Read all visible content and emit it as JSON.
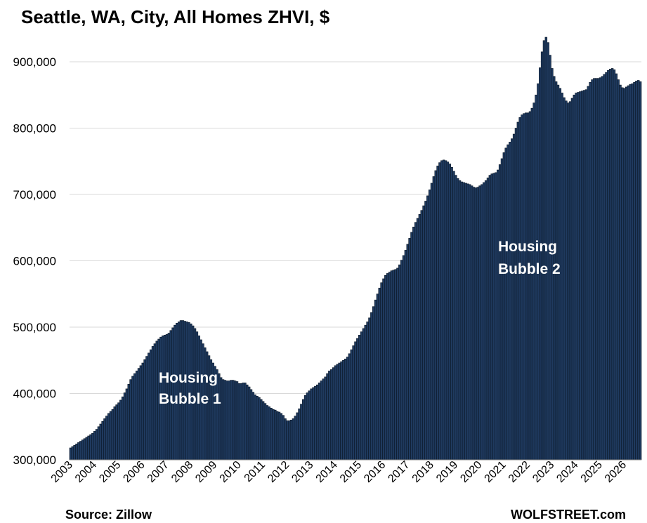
{
  "chart_data": {
    "type": "bar",
    "title": "Seattle, WA,  City, All Homes ZHVI, $",
    "xlabel": "",
    "ylabel": "",
    "ylim": [
      300000,
      940000
    ],
    "yticks": [
      300000,
      400000,
      500000,
      600000,
      700000,
      800000,
      900000
    ],
    "ytick_labels": [
      "300,000",
      "400,000",
      "500,000",
      "600,000",
      "700,000",
      "800,000",
      "900,000"
    ],
    "xtick_labels": [
      "2003",
      "2004",
      "2005",
      "2006",
      "2007",
      "2008",
      "2009",
      "2010",
      "2011",
      "2012",
      "2013",
      "2014",
      "2015",
      "2016",
      "2017",
      "2018",
      "2019",
      "2020",
      "2021",
      "2022",
      "2023",
      "2024",
      "2025",
      "2026"
    ],
    "grid": true,
    "frequency": "monthly",
    "start": "2003-01",
    "bar_color": "#1f3a5f",
    "series": [
      {
        "values": [
          318000,
          320000,
          322000,
          324000,
          326000,
          328000,
          330000,
          332000,
          334000,
          336000,
          338000,
          340000,
          343000,
          346000,
          350000,
          354000,
          358000,
          362000,
          366000,
          370000,
          373000,
          376000,
          380000,
          383000,
          386000,
          390000,
          395000,
          401000,
          407000,
          414000,
          421000,
          426000,
          430000,
          434000,
          438000,
          442000,
          446000,
          451000,
          456000,
          461000,
          466000,
          471000,
          475000,
          479000,
          482000,
          485000,
          487000,
          488000,
          489000,
          491000,
          495000,
          499000,
          503000,
          506000,
          508000,
          510000,
          510000,
          509000,
          508000,
          507000,
          505000,
          502000,
          498000,
          493000,
          487000,
          481000,
          475000,
          469000,
          463000,
          457000,
          451000,
          446000,
          441000,
          436000,
          430000,
          424000,
          421000,
          420000,
          419000,
          419000,
          420000,
          420000,
          419000,
          418000,
          415000,
          415000,
          416000,
          416000,
          413000,
          410000,
          406000,
          402000,
          398000,
          396000,
          394000,
          391000,
          388000,
          385000,
          382000,
          380000,
          378000,
          376000,
          375000,
          373000,
          372000,
          370000,
          367000,
          362000,
          359000,
          359000,
          360000,
          362000,
          366000,
          371000,
          377000,
          384000,
          391000,
          397000,
          401000,
          404000,
          407000,
          409000,
          411000,
          413000,
          416000,
          419000,
          422000,
          425000,
          430000,
          434000,
          436000,
          439000,
          442000,
          444000,
          446000,
          448000,
          450000,
          452000,
          455000,
          460000,
          466000,
          472000,
          478000,
          483000,
          488000,
          493000,
          498000,
          503000,
          508000,
          514000,
          522000,
          531000,
          541000,
          550000,
          559000,
          567000,
          573000,
          578000,
          581000,
          583000,
          585000,
          586000,
          587000,
          589000,
          594000,
          601000,
          608000,
          616000,
          625000,
          634000,
          643000,
          651000,
          658000,
          664000,
          670000,
          676000,
          683000,
          690000,
          698000,
          707000,
          717000,
          727000,
          736000,
          743000,
          748000,
          751000,
          752000,
          751000,
          749000,
          746000,
          741000,
          735000,
          729000,
          724000,
          721000,
          719000,
          718000,
          717000,
          716000,
          715000,
          713000,
          711000,
          710000,
          711000,
          713000,
          715000,
          718000,
          721000,
          725000,
          729000,
          731000,
          732000,
          733000,
          737000,
          745000,
          754000,
          763000,
          770000,
          775000,
          779000,
          784000,
          791000,
          800000,
          809000,
          816000,
          820000,
          822000,
          823000,
          823000,
          825000,
          830000,
          838000,
          850000,
          867000,
          891000,
          915000,
          932000,
          937000,
          929000,
          910000,
          890000,
          878000,
          870000,
          865000,
          860000,
          853000,
          846000,
          841000,
          838000,
          840000,
          845000,
          850000,
          853000,
          854000,
          855000,
          856000,
          857000,
          858000,
          863000,
          869000,
          873000,
          875000,
          875000,
          875000,
          876000,
          878000,
          881000,
          884000,
          887000,
          889000,
          890000,
          888000,
          882000,
          873000,
          865000,
          861000,
          860000,
          862000,
          864000,
          866000,
          867000,
          869000,
          871000,
          872000,
          870000
        ]
      }
    ],
    "annotations": [
      {
        "text": "Housing",
        "line2": "Bubble 1"
      },
      {
        "text": "Housing",
        "line2": "Bubble 2"
      }
    ]
  },
  "footer": {
    "source": "Source: Zillow",
    "brand": "WOLFSTREET.com"
  }
}
